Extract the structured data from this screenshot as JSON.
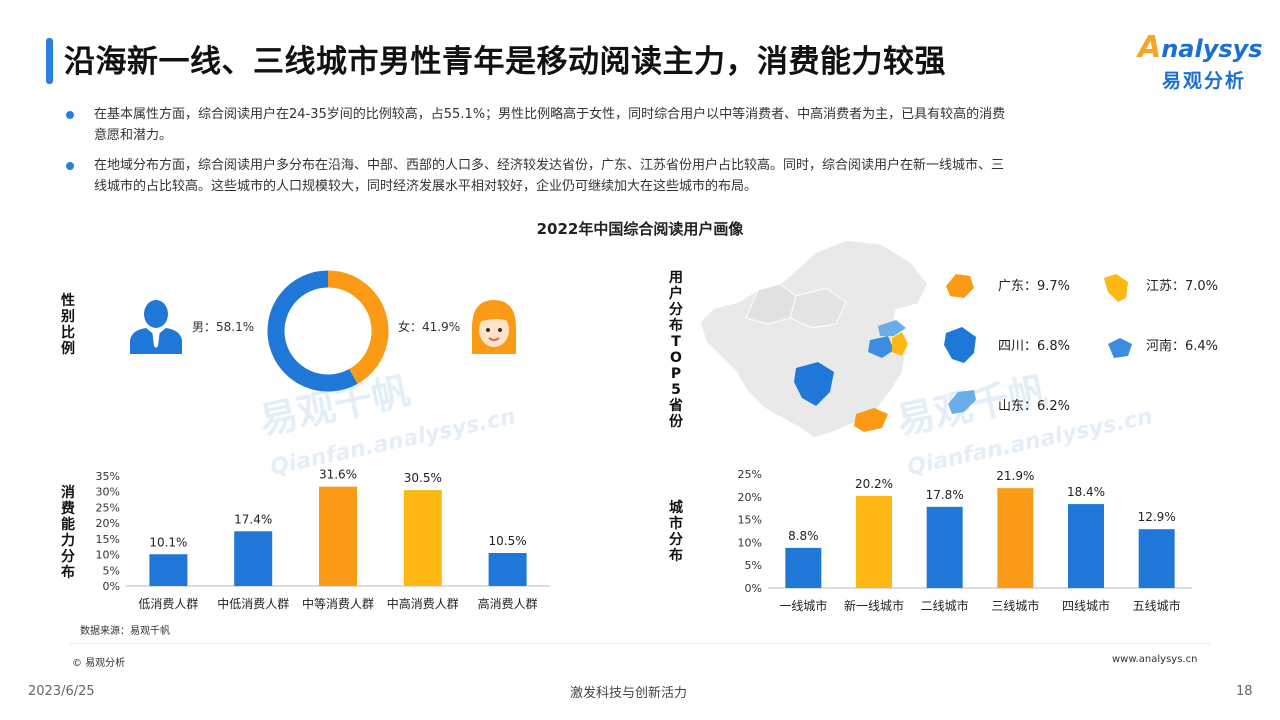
{
  "title": "沿海新一线、三线城市男性青年是移动阅读主力，消费能力较强",
  "logo": {
    "en": "nalysys",
    "en_prefix": "A",
    "cn": "易观分析"
  },
  "bullets": [
    {
      "line1": "在基本属性方面，综合阅读用户在24-35岁间的比例较高，占55.1%；男性比例略高于女性，同时综合用户以中等消费者、中高消费者为主，已具有较高的消费",
      "line2": "意愿和潜力。"
    },
    {
      "line1": "在地域分布方面，综合阅读用户多分布在沿海、中部、西部的人口多、经济较发达省份，广东、江苏省份用户占比较高。同时，综合阅读用户在新一线城市、三",
      "line2": "线城市的占比较高。这些城市的人口规模较大，同时经济发展水平相对较好，企业仍可继续加大在这些城市的布局。"
    }
  ],
  "main_title": "2022年中国综合阅读用户画像",
  "watermark": {
    "cn": "易观千帆",
    "en": "Qianfan.analysys.cn"
  },
  "section_labels": {
    "gender": "性别比例",
    "consumption": "消费能力分布",
    "province": "用户分布TOP 5省份",
    "city": "城市分布"
  },
  "colors": {
    "blue": "#1f78d8",
    "orange": "#fb9a14",
    "yellow": "#fdb813",
    "light_blue": "#6aaee9"
  },
  "chart_data": [
    {
      "type": "pie",
      "name": "gender",
      "categories": [
        "男",
        "女"
      ],
      "values": [
        58.1,
        41.9
      ],
      "labels": [
        "男：58.1%",
        "女：41.9%"
      ],
      "colors": [
        "#1f78d8",
        "#fb9a14"
      ]
    },
    {
      "type": "bar",
      "name": "consumption",
      "categories": [
        "低消费人群",
        "中低消费人群",
        "中等消费人群",
        "中高消费人群",
        "高消费人群"
      ],
      "values": [
        10.1,
        17.4,
        31.6,
        30.5,
        10.5
      ],
      "value_labels": [
        "10.1%",
        "17.4%",
        "31.6%",
        "30.5%",
        "10.5%"
      ],
      "colors": [
        "#1f78d8",
        "#1f78d8",
        "#fb9a14",
        "#fdb813",
        "#1f78d8"
      ],
      "ylim": [
        0,
        35
      ],
      "yticks": [
        "0%",
        "5%",
        "10%",
        "15%",
        "20%",
        "25%",
        "30%",
        "35%"
      ],
      "source": "数据来源：易观千帆"
    },
    {
      "type": "table",
      "name": "province_top5",
      "items": [
        {
          "label": "广东：9.7%",
          "value": 9.7,
          "color": "#fb9a14"
        },
        {
          "label": "江苏：7.0%",
          "value": 7.0,
          "color": "#fdb813"
        },
        {
          "label": "四川：6.8%",
          "value": 6.8,
          "color": "#1f78d8"
        },
        {
          "label": "河南：6.4%",
          "value": 6.4,
          "color": "#3b8de0"
        },
        {
          "label": "山东：6.2%",
          "value": 6.2,
          "color": "#6aaee9"
        }
      ]
    },
    {
      "type": "bar",
      "name": "city",
      "categories": [
        "一线城市",
        "新一线城市",
        "二线城市",
        "三线城市",
        "四线城市",
        "五线城市"
      ],
      "values": [
        8.8,
        20.2,
        17.8,
        21.9,
        18.4,
        12.9
      ],
      "value_labels": [
        "8.8%",
        "20.2%",
        "17.8%",
        "21.9%",
        "18.4%",
        "12.9%"
      ],
      "colors": [
        "#1f78d8",
        "#fdb813",
        "#1f78d8",
        "#fb9a14",
        "#1f78d8",
        "#1f78d8"
      ],
      "ylim": [
        0,
        25
      ],
      "yticks": [
        "0%",
        "5%",
        "10%",
        "15%",
        "20%",
        "25%"
      ]
    }
  ],
  "footer": {
    "copyright": "© 易观分析",
    "url": "www.analysys.cn",
    "date": "2023/6/25",
    "slogan": "激发科技与创新活力",
    "page": "18"
  }
}
